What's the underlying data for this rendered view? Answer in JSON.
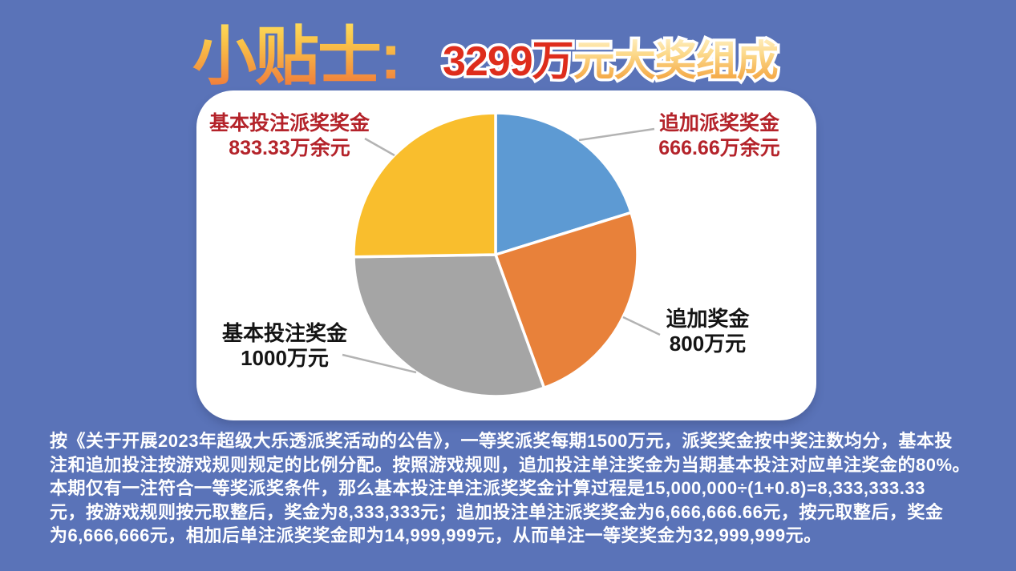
{
  "title": {
    "tip": "小贴士:",
    "amount": "3299万",
    "rest": "元大奖组成"
  },
  "chart_data": {
    "type": "pie",
    "title": "3299万元大奖组成",
    "unit": "万元",
    "total_value": 3299.99,
    "start_angle_deg": 0,
    "direction": "clockwise",
    "legend_position": "none",
    "labels_outside": true,
    "slices": [
      {
        "label": "追加派奖奖金",
        "value": 666.66,
        "value_label": "666.66万余元",
        "color": "#5d9ad3"
      },
      {
        "label": "追加奖金",
        "value": 800,
        "value_label": "800万元",
        "color": "#e8813a"
      },
      {
        "label": "基本投注奖金",
        "value": 1000,
        "value_label": "1000万元",
        "color": "#a5a5a5"
      },
      {
        "label": "基本投注派奖奖金",
        "value": 833.33,
        "value_label": "833.33万余元",
        "color": "#f9be2d"
      }
    ]
  },
  "body": {
    "lines": [
      "按《关于开展2023年超级大乐透派奖活动的公告》，一等奖派奖每期1500万元，派奖奖金按中奖注数均分，基本投",
      "注和追加投注按游戏规则规定的比例分配。按照游戏规则，追加投注单注奖金为当期基本投注对应单注奖金的80%。",
      "本期仅有一注符合一等奖派奖条件，那么基本投注单注派奖奖金计算过程是15,000,000÷(1+0.8)=8,333,333.33",
      "元，按游戏规则按元取整后，奖金为8,333,333元；追加投注单注派奖奖金为6,666,666.66元，按元取整后，奖金",
      "为6,666,666元，相加后单注派奖奖金即为14,999,999元，从而单注一等奖奖金为32,999,999元。"
    ]
  },
  "colors": {
    "background": "#5a73b8",
    "card": "#ffffff",
    "callout_red": "#b4232a",
    "callout_black": "#141414",
    "body_text": "#ffffff",
    "title_amount_red": "#de2d1c",
    "title_gradient_top": "#ffe763",
    "title_gradient_bottom": "#ef7a3a",
    "pie_separator": "#ffffff",
    "leader_line": "#b3b3b3"
  }
}
